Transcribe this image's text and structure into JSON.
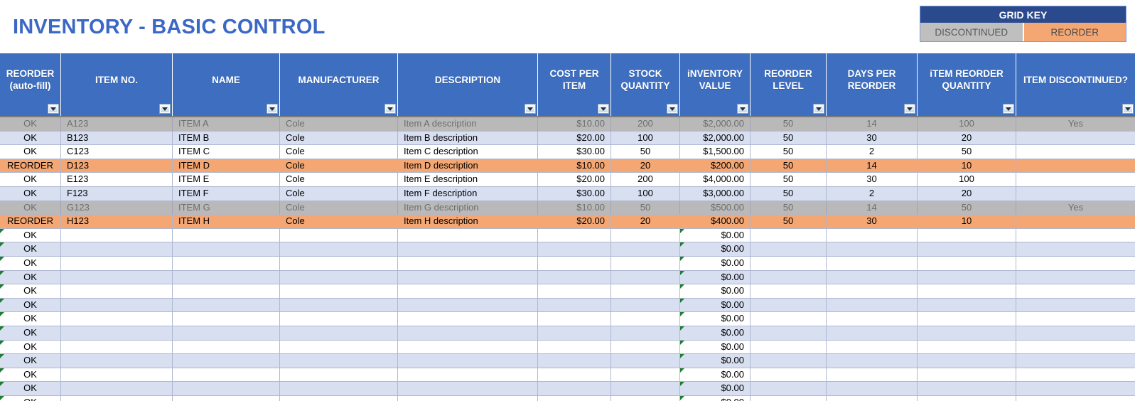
{
  "title": "INVENTORY - BASIC CONTROL",
  "grid_key": {
    "header": "GRID KEY",
    "discontinued_label": "DISCONTINUED",
    "reorder_label": "REORDER"
  },
  "colors": {
    "title_blue": "#3b68c6",
    "header_blue": "#3d6ebf",
    "key_navy": "#2b4a8e",
    "discontinued_gray": "#b9b9b9",
    "reorder_orange": "#f4a673",
    "band_blue": "#d7dff1",
    "error_triangle_green": "#1e7e34"
  },
  "columns": [
    {
      "key": "reorder",
      "label": "REORDER (auto-fill)",
      "align": "center"
    },
    {
      "key": "item_no",
      "label": "ITEM NO.",
      "align": "left"
    },
    {
      "key": "name",
      "label": "NAME",
      "align": "left"
    },
    {
      "key": "manufacturer",
      "label": "MANUFACTURER",
      "align": "left"
    },
    {
      "key": "description",
      "label": "DESCRIPTION",
      "align": "left"
    },
    {
      "key": "cost_per_item",
      "label": "COST PER ITEM",
      "align": "right"
    },
    {
      "key": "stock_quantity",
      "label": "STOCK QUANTITY",
      "align": "center"
    },
    {
      "key": "inventory_value",
      "label": "iNVENTORY VALUE",
      "align": "right"
    },
    {
      "key": "reorder_level",
      "label": "REORDER LEVEL",
      "align": "center"
    },
    {
      "key": "days_per_reorder",
      "label": "DAYS PER REORDER",
      "align": "center"
    },
    {
      "key": "item_reorder_quantity",
      "label": "iTEM REORDER QUANTITY",
      "align": "center"
    },
    {
      "key": "item_discontinued",
      "label": "ITEM DISCONTINUED?",
      "align": "center"
    }
  ],
  "rows": [
    {
      "row_color": "gray",
      "reorder": "OK",
      "item_no": "A123",
      "name": "ITEM A",
      "manufacturer": "Cole",
      "description": "Item A description",
      "cost_per_item": "$10.00",
      "stock_quantity": "200",
      "inventory_value": "$2,000.00",
      "reorder_level": "50",
      "days_per_reorder": "14",
      "item_reorder_quantity": "100",
      "item_discontinued": "Yes"
    },
    {
      "row_color": "blue",
      "reorder": "OK",
      "item_no": "B123",
      "name": "ITEM B",
      "manufacturer": "Cole",
      "description": "Item B description",
      "cost_per_item": "$20.00",
      "stock_quantity": "100",
      "inventory_value": "$2,000.00",
      "reorder_level": "50",
      "days_per_reorder": "30",
      "item_reorder_quantity": "20",
      "item_discontinued": ""
    },
    {
      "row_color": "white",
      "reorder": "OK",
      "item_no": "C123",
      "name": "ITEM C",
      "manufacturer": "Cole",
      "description": "Item C description",
      "cost_per_item": "$30.00",
      "stock_quantity": "50",
      "inventory_value": "$1,500.00",
      "reorder_level": "50",
      "days_per_reorder": "2",
      "item_reorder_quantity": "50",
      "item_discontinued": ""
    },
    {
      "row_color": "orange",
      "reorder": "REORDER",
      "item_no": "D123",
      "name": "ITEM D",
      "manufacturer": "Cole",
      "description": "Item D description",
      "cost_per_item": "$10.00",
      "stock_quantity": "20",
      "inventory_value": "$200.00",
      "reorder_level": "50",
      "days_per_reorder": "14",
      "item_reorder_quantity": "10",
      "item_discontinued": ""
    },
    {
      "row_color": "white",
      "reorder": "OK",
      "item_no": "E123",
      "name": "ITEM E",
      "manufacturer": "Cole",
      "description": "Item E description",
      "cost_per_item": "$20.00",
      "stock_quantity": "200",
      "inventory_value": "$4,000.00",
      "reorder_level": "50",
      "days_per_reorder": "30",
      "item_reorder_quantity": "100",
      "item_discontinued": ""
    },
    {
      "row_color": "blue",
      "reorder": "OK",
      "item_no": "F123",
      "name": "ITEM F",
      "manufacturer": "Cole",
      "description": "Item F description",
      "cost_per_item": "$30.00",
      "stock_quantity": "100",
      "inventory_value": "$3,000.00",
      "reorder_level": "50",
      "days_per_reorder": "2",
      "item_reorder_quantity": "20",
      "item_discontinued": ""
    },
    {
      "row_color": "gray",
      "reorder": "OK",
      "item_no": "G123",
      "name": "ITEM G",
      "manufacturer": "Cole",
      "description": "Item G description",
      "cost_per_item": "$10.00",
      "stock_quantity": "50",
      "inventory_value": "$500.00",
      "reorder_level": "50",
      "days_per_reorder": "14",
      "item_reorder_quantity": "50",
      "item_discontinued": "Yes"
    },
    {
      "row_color": "orange",
      "reorder": "REORDER",
      "item_no": "H123",
      "name": "ITEM H",
      "manufacturer": "Cole",
      "description": "Item H description",
      "cost_per_item": "$20.00",
      "stock_quantity": "20",
      "inventory_value": "$400.00",
      "reorder_level": "50",
      "days_per_reorder": "30",
      "item_reorder_quantity": "10",
      "item_discontinued": ""
    }
  ],
  "empty_rows": {
    "count": 13,
    "first_band": "white",
    "reorder_value": "OK",
    "inventory_value": "$0.00"
  }
}
